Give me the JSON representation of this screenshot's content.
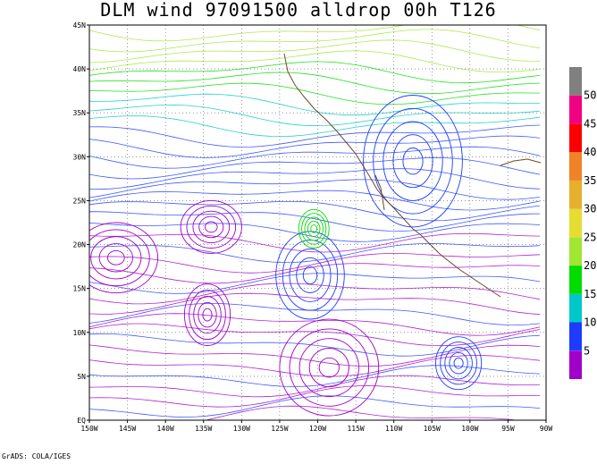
{
  "title": "DLM wind 97091500 alldrop 00h T126",
  "credit": "GrADS: COLA/IGES",
  "map": {
    "lon_range": [
      -150,
      -90
    ],
    "lat_range": [
      0,
      45
    ],
    "x_ticks": [
      {
        "value": -150,
        "label": "150W"
      },
      {
        "value": -145,
        "label": "145W"
      },
      {
        "value": -140,
        "label": "140W"
      },
      {
        "value": -135,
        "label": "135W"
      },
      {
        "value": -130,
        "label": "130W"
      },
      {
        "value": -125,
        "label": "125W"
      },
      {
        "value": -120,
        "label": "120W"
      },
      {
        "value": -115,
        "label": "115W"
      },
      {
        "value": -110,
        "label": "110W"
      },
      {
        "value": -105,
        "label": "105W"
      },
      {
        "value": -100,
        "label": "100W"
      },
      {
        "value": -95,
        "label": "95W"
      },
      {
        "value": -90,
        "label": "90W"
      }
    ],
    "y_ticks": [
      {
        "value": 0,
        "label": "EQ"
      },
      {
        "value": 5,
        "label": "5N"
      },
      {
        "value": 10,
        "label": "10N"
      },
      {
        "value": 15,
        "label": "15N"
      },
      {
        "value": 20,
        "label": "20N"
      },
      {
        "value": 25,
        "label": "25N"
      },
      {
        "value": 30,
        "label": "30N"
      },
      {
        "value": 35,
        "label": "35N"
      },
      {
        "value": 40,
        "label": "40N"
      },
      {
        "value": 45,
        "label": "45N"
      }
    ],
    "grid": true
  },
  "colorbar": {
    "bins": [
      {
        "color": "#a000c8",
        "label": "5"
      },
      {
        "color": "#1e3cff",
        "label": "10"
      },
      {
        "color": "#00c8c8",
        "label": "15"
      },
      {
        "color": "#00dc00",
        "label": "20"
      },
      {
        "color": "#a0e632",
        "label": "25"
      },
      {
        "color": "#e6dc32",
        "label": "30"
      },
      {
        "color": "#e6af2d",
        "label": "35"
      },
      {
        "color": "#f08228",
        "label": "40"
      },
      {
        "color": "#fa0000",
        "label": "45"
      },
      {
        "color": "#f00082",
        "label": "50"
      },
      {
        "color": "#808080",
        "label": ""
      }
    ]
  },
  "vortices": [
    {
      "lon": -146.5,
      "lat": 18.5,
      "rx": 5.5,
      "ry": 4.0,
      "color": "#a000c8"
    },
    {
      "lon": -134.0,
      "lat": 22.0,
      "rx": 4.0,
      "ry": 3.0,
      "color": "#a000c8"
    },
    {
      "lon": -134.5,
      "lat": 12.0,
      "rx": 3.0,
      "ry": 3.5,
      "color": "#a000c8"
    },
    {
      "lon": -121.0,
      "lat": 16.5,
      "rx": 4.5,
      "ry": 5.0,
      "color": "#1e3cff"
    },
    {
      "lon": -120.5,
      "lat": 21.8,
      "rx": 2.0,
      "ry": 2.2,
      "color": "#00dc00"
    },
    {
      "lon": -118.5,
      "lat": 6.0,
      "rx": 6.5,
      "ry": 5.5,
      "color": "#a000c8"
    },
    {
      "lon": -107.5,
      "lat": 29.5,
      "rx": 6.5,
      "ry": 7.5,
      "color": "#1e3cff"
    },
    {
      "lon": -101.5,
      "lat": 6.5,
      "rx": 3.0,
      "ry": 3.0,
      "color": "#1e3cff"
    }
  ]
}
